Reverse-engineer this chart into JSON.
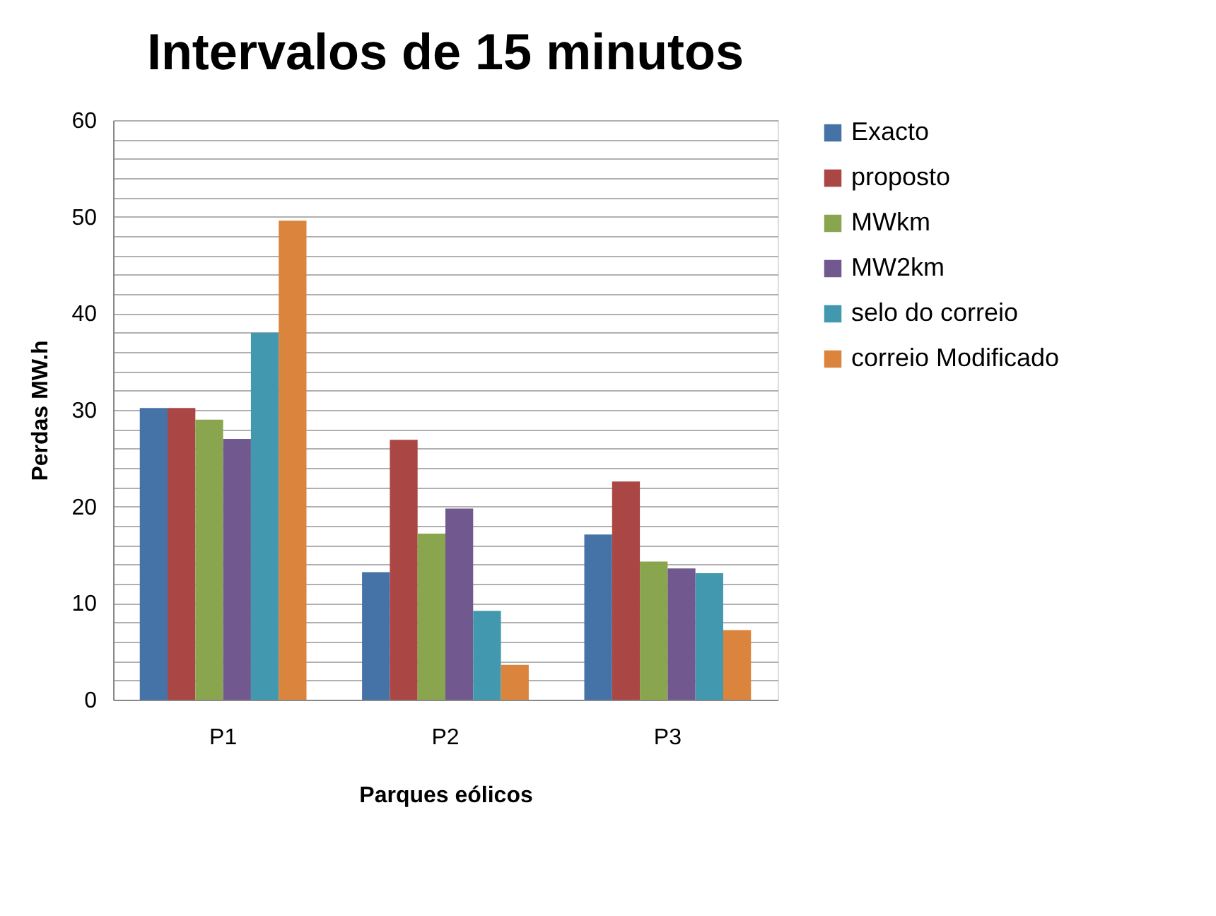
{
  "chart_data": {
    "type": "bar",
    "title": "Intervalos de 15 minutos",
    "xlabel": "Parques eólicos",
    "ylabel": "Perdas MW.h",
    "categories": [
      "P1",
      "P2",
      "P3"
    ],
    "series": [
      {
        "name": "Exacto",
        "color": "#4572a7",
        "values": [
          30.2,
          13.2,
          17.1
        ]
      },
      {
        "name": "proposto",
        "color": "#aa4643",
        "values": [
          30.2,
          26.9,
          22.6
        ]
      },
      {
        "name": "MWkm",
        "color": "#89a54e",
        "values": [
          29.0,
          17.2,
          14.3
        ]
      },
      {
        "name": "MW2km",
        "color": "#71588f",
        "values": [
          27.0,
          19.8,
          13.6
        ]
      },
      {
        "name": "selo do correio",
        "color": "#4198af",
        "values": [
          38.0,
          9.2,
          13.1
        ]
      },
      {
        "name": "correio Modificado",
        "color": "#db843d",
        "values": [
          49.6,
          3.6,
          7.2
        ]
      }
    ],
    "ylim": [
      0,
      60
    ],
    "yticks": [
      0,
      {
        "value": 2,
        "label": null
      },
      {
        "value": 4,
        "label": null
      },
      {
        "value": 6,
        "label": null
      },
      {
        "value": 8,
        "label": null
      },
      10,
      {
        "value": 12,
        "label": null
      },
      {
        "value": 14,
        "label": null
      },
      {
        "value": 16,
        "label": null
      },
      {
        "value": 18,
        "label": null
      },
      20,
      {
        "value": 22,
        "label": null
      },
      {
        "value": 24,
        "label": null
      },
      {
        "value": 26,
        "label": null
      },
      {
        "value": 28,
        "label": null
      },
      30,
      {
        "value": 32,
        "label": null
      },
      {
        "value": 34,
        "label": null
      },
      {
        "value": 36,
        "label": null
      },
      {
        "value": 38,
        "label": null
      },
      40,
      {
        "value": 42,
        "label": null
      },
      {
        "value": 44,
        "label": null
      },
      {
        "value": 46,
        "label": null
      },
      {
        "value": 48,
        "label": null
      },
      50,
      {
        "value": 52,
        "label": null
      },
      {
        "value": 54,
        "label": null
      },
      {
        "value": 56,
        "label": null
      },
      {
        "value": 58,
        "label": null
      },
      60
    ],
    "grid": "y",
    "legend": "right"
  }
}
